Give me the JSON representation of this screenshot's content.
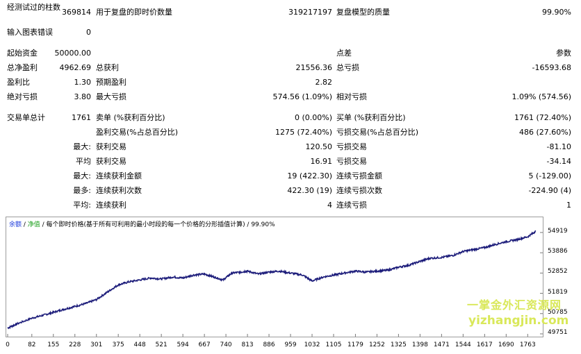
{
  "report": {
    "rows": [
      {
        "label": "经测试过的柱数",
        "value": "369814",
        "label2": "用于复盘的即时价数量",
        "value2": "319217197",
        "label3": "复盘模型的质量",
        "value3": "99.90%"
      },
      {
        "label": "输入图表错误",
        "value": "0"
      },
      {
        "value": "50000.00",
        "label": "起始资金",
        "label3": "点差",
        "value3": "参数"
      },
      {
        "label": "总净盈利",
        "value": "4962.69",
        "label2": "总获利",
        "value2": "21556.36",
        "label3": "总亏损",
        "value3": "-16593.68"
      },
      {
        "label": "盈利比",
        "value": "1.30",
        "label2": "预期盈利",
        "value2": "2.82"
      },
      {
        "label": "绝对亏损",
        "value": "3.80",
        "label2": "最大亏损",
        "value2": "574.56 (1.09%)",
        "label3": "相对亏损",
        "value3": "1.09% (574.56)"
      },
      {
        "label": "交易单总计",
        "value": "1761",
        "label2": "卖单 (%获利百分比)",
        "value2": "0 (0.00%)",
        "label3": "买单 (%获利百分比)",
        "value3": "1761 (72.40%)"
      },
      {
        "label2": "盈利交易(%占总百分比)",
        "value2": "1275 (72.40%)",
        "label3": "亏损交易(%占总百分比)",
        "value3": "486 (27.60%)"
      },
      {
        "prefix": "最大:",
        "label2": "获利交易",
        "value2": "120.50",
        "label3": "亏损交易",
        "value3": "-81.10"
      },
      {
        "prefix": "平均",
        "label2": "获利交易",
        "value2": "16.91",
        "label3": "亏损交易",
        "value3": "-34.14"
      },
      {
        "prefix": "最大:",
        "label2": "连续获利金额",
        "value2": "19 (422.30)",
        "label3": "连续亏损金额",
        "value3": "5 (-129.00)"
      },
      {
        "prefix": "最多:",
        "label2": "连续获利次数",
        "value2": "422.30 (19)",
        "label3": "连续亏损次数",
        "value3": "-224.90 (4)"
      },
      {
        "prefix": "平均:",
        "label2": "连续获利",
        "value2": "4",
        "label3": "连续亏损",
        "value3": "1"
      }
    ]
  },
  "chart": {
    "legend_balance": "余额",
    "legend_sep": " / ",
    "legend_equity": "净值",
    "legend_rest": " / 每个即时价格(基于所有可利用的最小时段的每一个价格的分形插值计算) / 99.90%",
    "line_color": "#1c1c7a",
    "y_ticks": [
      "54919",
      "53886",
      "52852",
      "51819",
      "50785",
      "49751"
    ],
    "x_ticks": [
      "0",
      "82",
      "155",
      "228",
      "301",
      "375",
      "448",
      "521",
      "594",
      "667",
      "740",
      "813",
      "886",
      "959",
      "1032",
      "1105",
      "1179",
      "1252",
      "1325",
      "1398",
      "1471",
      "1544",
      "1617",
      "1690",
      "1763"
    ]
  },
  "chart_data": {
    "type": "line",
    "title": "",
    "xlabel": "",
    "ylabel": "",
    "xlim": [
      0,
      1800
    ],
    "ylim": [
      49751,
      55200
    ],
    "series": [
      {
        "name": "余额",
        "x": [
          0,
          30,
          82,
          120,
          155,
          190,
          228,
          265,
          301,
          340,
          375,
          410,
          448,
          485,
          521,
          560,
          594,
          630,
          667,
          700,
          730,
          760,
          790,
          813,
          850,
          886,
          920,
          959,
          1000,
          1032,
          1070,
          1105,
          1140,
          1179,
          1215,
          1252,
          1290,
          1325,
          1360,
          1398,
          1430,
          1471,
          1510,
          1544,
          1580,
          1617,
          1650,
          1690,
          1725,
          1763,
          1790
        ],
        "y": [
          50050,
          50250,
          50550,
          50700,
          50850,
          51000,
          51150,
          51300,
          51500,
          51900,
          52250,
          52400,
          52500,
          52600,
          52550,
          52650,
          52600,
          52750,
          52800,
          52650,
          52500,
          52850,
          52900,
          52950,
          52800,
          52900,
          52950,
          52850,
          52750,
          52450,
          52650,
          52750,
          52850,
          52950,
          52900,
          52950,
          53000,
          53150,
          53250,
          53450,
          53600,
          53650,
          53750,
          53950,
          54050,
          54150,
          54300,
          54450,
          54550,
          54700,
          54980
        ]
      }
    ]
  },
  "watermark": {
    "line1": "一掌金外汇资源网",
    "line2": "yizhangjin.com"
  }
}
